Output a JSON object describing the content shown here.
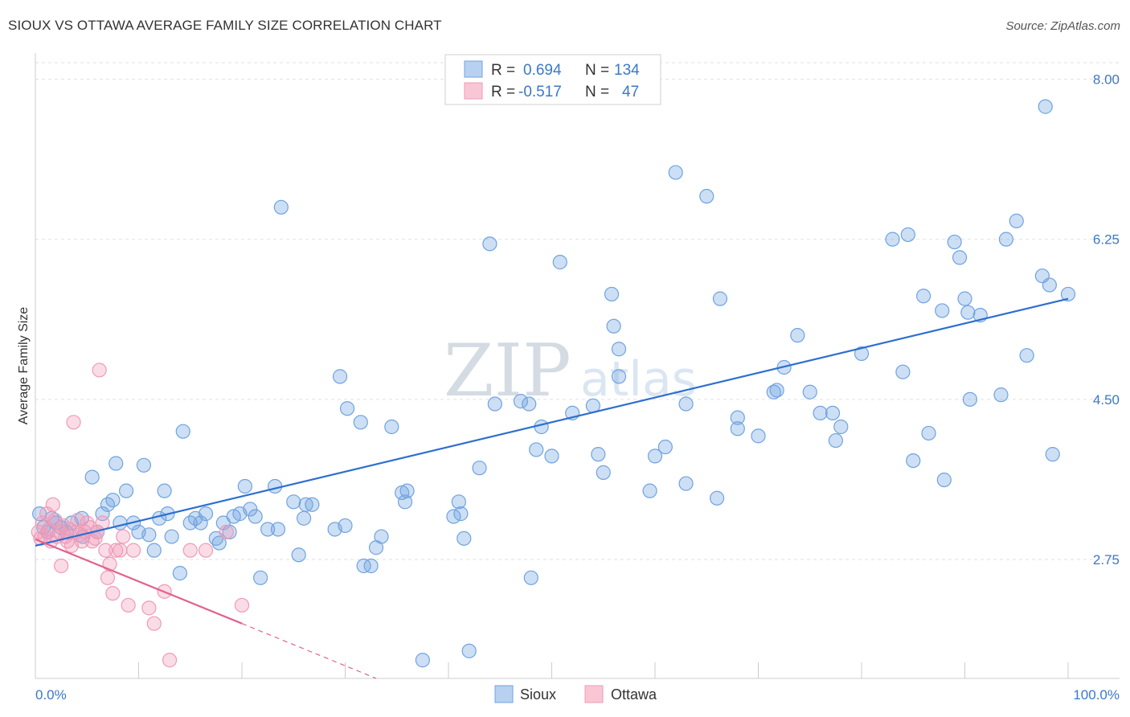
{
  "title": "SIOUX VS OTTAWA AVERAGE FAMILY SIZE CORRELATION CHART",
  "source": "Source: ZipAtlas.com",
  "watermark": {
    "zip": "ZIP",
    "atlas": "atlas"
  },
  "chart_data": {
    "type": "scatter",
    "ylabel": "Average Family Size",
    "xlim": [
      0,
      100
    ],
    "ylim": [
      1.45,
      8.25
    ],
    "x_tick_labels": [
      "0.0%",
      "100.0%"
    ],
    "y_ticks": [
      2.75,
      4.5,
      6.25,
      8.0
    ],
    "y_tick_labels": [
      "2.75",
      "4.50",
      "6.25",
      "8.00"
    ],
    "legend": {
      "rows": [
        {
          "r_label": "R =",
          "r_value": "0.694",
          "n_label": "N =",
          "n_value": "134"
        },
        {
          "r_label": "R =",
          "r_value": "-0.517",
          "n_label": "N =",
          "n_value": "47"
        }
      ]
    },
    "series": [
      {
        "name": "Sioux",
        "color": "#6fa3e0",
        "line_color": "#2d6fcf",
        "trend": {
          "x": [
            0,
            100
          ],
          "y": [
            2.9,
            5.6
          ]
        },
        "points": [
          [
            0.4,
            3.25
          ],
          [
            0.8,
            3.1
          ],
          [
            1.2,
            3.05
          ],
          [
            1.6,
            3.2
          ],
          [
            2.0,
            3.15
          ],
          [
            2.5,
            3.1
          ],
          [
            3.0,
            3.05
          ],
          [
            3.5,
            3.15
          ],
          [
            4.5,
            3.2
          ],
          [
            4.6,
            3.0
          ],
          [
            5.5,
            3.65
          ],
          [
            6.0,
            3.05
          ],
          [
            6.5,
            3.25
          ],
          [
            7.0,
            3.35
          ],
          [
            7.5,
            3.4
          ],
          [
            7.8,
            3.8
          ],
          [
            8.2,
            3.15
          ],
          [
            8.8,
            3.5
          ],
          [
            9.5,
            3.15
          ],
          [
            10.0,
            3.05
          ],
          [
            10.5,
            3.78
          ],
          [
            11.0,
            3.02
          ],
          [
            11.5,
            2.85
          ],
          [
            12.0,
            3.2
          ],
          [
            12.5,
            3.5
          ],
          [
            12.8,
            3.25
          ],
          [
            13.2,
            3.0
          ],
          [
            14.0,
            2.6
          ],
          [
            14.3,
            4.15
          ],
          [
            15.0,
            3.15
          ],
          [
            15.5,
            3.2
          ],
          [
            16.0,
            3.15
          ],
          [
            16.5,
            3.25
          ],
          [
            17.5,
            2.98
          ],
          [
            17.8,
            2.93
          ],
          [
            18.2,
            3.15
          ],
          [
            18.8,
            3.05
          ],
          [
            19.2,
            3.22
          ],
          [
            19.8,
            3.25
          ],
          [
            20.3,
            3.55
          ],
          [
            20.8,
            3.3
          ],
          [
            21.3,
            3.22
          ],
          [
            21.8,
            2.55
          ],
          [
            22.5,
            3.08
          ],
          [
            23.2,
            3.55
          ],
          [
            23.5,
            3.08
          ],
          [
            23.8,
            6.6
          ],
          [
            25.0,
            3.38
          ],
          [
            25.5,
            2.8
          ],
          [
            26.0,
            3.2
          ],
          [
            26.2,
            3.35
          ],
          [
            26.8,
            3.35
          ],
          [
            29.0,
            3.08
          ],
          [
            30.0,
            3.12
          ],
          [
            29.5,
            4.75
          ],
          [
            30.2,
            4.4
          ],
          [
            31.5,
            4.25
          ],
          [
            31.8,
            2.68
          ],
          [
            32.5,
            2.68
          ],
          [
            33.0,
            2.88
          ],
          [
            33.5,
            3.0
          ],
          [
            34.5,
            4.2
          ],
          [
            35.5,
            3.48
          ],
          [
            35.8,
            3.38
          ],
          [
            36.0,
            3.5
          ],
          [
            37.5,
            1.65
          ],
          [
            40.5,
            3.22
          ],
          [
            41.0,
            3.38
          ],
          [
            41.2,
            3.25
          ],
          [
            41.5,
            2.98
          ],
          [
            42.0,
            1.75
          ],
          [
            43.0,
            3.75
          ],
          [
            44.0,
            6.2
          ],
          [
            44.5,
            4.45
          ],
          [
            47.0,
            4.48
          ],
          [
            47.8,
            4.45
          ],
          [
            48.0,
            2.55
          ],
          [
            48.5,
            3.95
          ],
          [
            49.0,
            4.2
          ],
          [
            50.0,
            3.88
          ],
          [
            50.8,
            6.0
          ],
          [
            52.0,
            4.35
          ],
          [
            54.0,
            4.43
          ],
          [
            54.5,
            3.9
          ],
          [
            55.0,
            3.7
          ],
          [
            56.5,
            5.05
          ],
          [
            55.8,
            5.65
          ],
          [
            56.5,
            4.75
          ],
          [
            56.0,
            5.3
          ],
          [
            59.5,
            3.5
          ],
          [
            60.0,
            3.88
          ],
          [
            61.0,
            3.98
          ],
          [
            62.0,
            6.98
          ],
          [
            63.0,
            3.58
          ],
          [
            63.0,
            4.45
          ],
          [
            65.0,
            6.72
          ],
          [
            66.0,
            3.42
          ],
          [
            66.3,
            5.6
          ],
          [
            68.0,
            4.3
          ],
          [
            68.0,
            4.18
          ],
          [
            70.0,
            4.1
          ],
          [
            71.5,
            4.58
          ],
          [
            71.8,
            4.6
          ],
          [
            72.5,
            4.85
          ],
          [
            73.8,
            5.2
          ],
          [
            75.0,
            4.58
          ],
          [
            76.0,
            4.35
          ],
          [
            77.2,
            4.35
          ],
          [
            77.5,
            4.05
          ],
          [
            78.0,
            4.2
          ],
          [
            80.0,
            5.0
          ],
          [
            83.0,
            6.25
          ],
          [
            84.0,
            4.8
          ],
          [
            84.5,
            6.3
          ],
          [
            85.0,
            3.83
          ],
          [
            86.0,
            5.63
          ],
          [
            86.5,
            4.13
          ],
          [
            87.8,
            5.47
          ],
          [
            88.0,
            3.62
          ],
          [
            89.0,
            6.22
          ],
          [
            89.5,
            6.05
          ],
          [
            90.0,
            5.6
          ],
          [
            90.3,
            5.45
          ],
          [
            90.5,
            4.5
          ],
          [
            91.5,
            5.42
          ],
          [
            93.5,
            4.55
          ],
          [
            94.0,
            6.25
          ],
          [
            95.0,
            6.45
          ],
          [
            96.0,
            4.98
          ],
          [
            97.5,
            5.85
          ],
          [
            97.8,
            7.7
          ],
          [
            98.2,
            5.75
          ],
          [
            98.5,
            3.9
          ],
          [
            100.0,
            5.65
          ]
        ]
      },
      {
        "name": "Ottawa",
        "color": "#f09ab6",
        "line_color": "#e0628e",
        "trend": {
          "x": [
            0,
            20
          ],
          "y": [
            2.97,
            2.05
          ]
        },
        "trend_dashed": {
          "x": [
            20,
            33
          ],
          "y": [
            2.05,
            1.45
          ]
        },
        "points": [
          [
            0.3,
            3.05
          ],
          [
            0.5,
            2.98
          ],
          [
            0.7,
            3.15
          ],
          [
            0.9,
            3.0
          ],
          [
            1.1,
            3.25
          ],
          [
            1.3,
            3.08
          ],
          [
            1.5,
            2.95
          ],
          [
            1.7,
            3.35
          ],
          [
            1.9,
            3.18
          ],
          [
            2.1,
            3.0
          ],
          [
            2.3,
            3.05
          ],
          [
            2.5,
            2.68
          ],
          [
            2.7,
            3.12
          ],
          [
            2.9,
            3.0
          ],
          [
            3.1,
            2.95
          ],
          [
            3.3,
            3.08
          ],
          [
            3.5,
            2.9
          ],
          [
            3.7,
            4.25
          ],
          [
            3.9,
            3.05
          ],
          [
            4.1,
            3.18
          ],
          [
            4.3,
            3.02
          ],
          [
            4.5,
            2.95
          ],
          [
            4.8,
            3.05
          ],
          [
            5.0,
            3.15
          ],
          [
            5.3,
            3.1
          ],
          [
            5.5,
            2.95
          ],
          [
            5.8,
            2.98
          ],
          [
            6.0,
            3.05
          ],
          [
            6.2,
            4.82
          ],
          [
            6.5,
            3.15
          ],
          [
            6.8,
            2.85
          ],
          [
            7.0,
            2.55
          ],
          [
            7.2,
            2.7
          ],
          [
            7.5,
            2.38
          ],
          [
            7.8,
            2.85
          ],
          [
            8.2,
            2.85
          ],
          [
            8.5,
            3.0
          ],
          [
            9.0,
            2.25
          ],
          [
            9.5,
            2.85
          ],
          [
            11.0,
            2.22
          ],
          [
            11.5,
            2.05
          ],
          [
            12.5,
            2.4
          ],
          [
            13.0,
            1.65
          ],
          [
            15.0,
            2.85
          ],
          [
            16.5,
            2.85
          ],
          [
            18.5,
            3.05
          ],
          [
            20.0,
            2.25
          ]
        ]
      }
    ]
  }
}
